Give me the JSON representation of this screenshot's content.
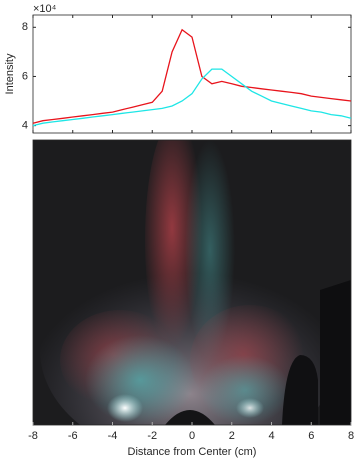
{
  "chart_data": {
    "type": "line",
    "y_label": "Intensity",
    "x_label": "Distance from Center (cm)",
    "y_exponent_label": "×10⁴",
    "x": [
      -8,
      -7.5,
      -7,
      -6.5,
      -6,
      -5.5,
      -5,
      -4.5,
      -4,
      -3.5,
      -3,
      -2.5,
      -2,
      -1.5,
      -1,
      -0.5,
      0,
      0.5,
      1,
      1.5,
      2,
      2.5,
      3,
      3.5,
      4,
      4.5,
      5,
      5.5,
      6,
      6.5,
      7,
      7.5,
      8
    ],
    "series": [
      {
        "color": "#e8141c",
        "values": [
          4.1,
          4.2,
          4.25,
          4.3,
          4.35,
          4.4,
          4.45,
          4.5,
          4.55,
          4.65,
          4.75,
          4.85,
          4.95,
          5.4,
          7.0,
          7.9,
          7.6,
          6.0,
          5.7,
          5.8,
          5.7,
          5.6,
          5.55,
          5.5,
          5.45,
          5.4,
          5.35,
          5.3,
          5.2,
          5.15,
          5.1,
          5.05,
          5.0
        ]
      },
      {
        "color": "#1ee6e6",
        "values": [
          4.0,
          4.1,
          4.15,
          4.2,
          4.25,
          4.3,
          4.35,
          4.4,
          4.45,
          4.5,
          4.55,
          4.6,
          4.65,
          4.7,
          4.8,
          5.0,
          5.3,
          5.9,
          6.3,
          6.3,
          6.0,
          5.7,
          5.4,
          5.2,
          5.0,
          4.9,
          4.8,
          4.7,
          4.6,
          4.55,
          4.45,
          4.4,
          4.3
        ]
      }
    ],
    "xlim": [
      -8,
      8
    ],
    "xticks": [
      -8,
      -6,
      -4,
      -2,
      0,
      2,
      4,
      6,
      8
    ],
    "ylim": [
      3.7,
      8.5
    ],
    "yticks": [
      4,
      6,
      8
    ]
  }
}
